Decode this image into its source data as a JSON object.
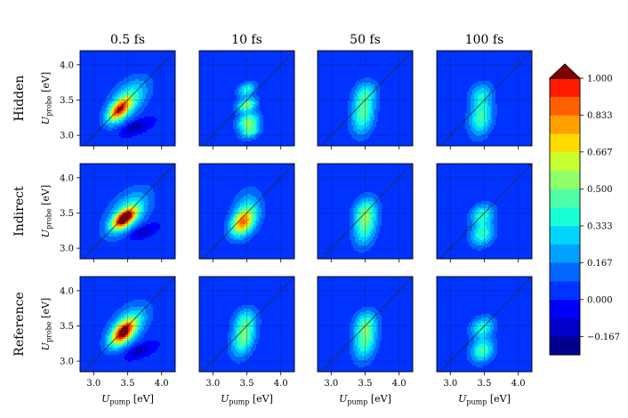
{
  "chart_data": {
    "type": "heatmap",
    "subtype": "filled-contour grid (2D spectra)",
    "column_titles": [
      "0.5 fs",
      "10 fs",
      "50 fs",
      "100 fs"
    ],
    "row_labels": [
      "Hidden",
      "Indirect",
      "Reference"
    ],
    "xlabel_main": "U",
    "xlabel_sub": "pump",
    "xlabel_unit": " [eV]",
    "ylabel_main": "U",
    "ylabel_sub": "probe",
    "ylabel_unit": " [eV]",
    "xlim": [
      2.8,
      4.2
    ],
    "ylim": [
      2.85,
      4.2
    ],
    "x_ticks": [
      3.0,
      3.5,
      4.0
    ],
    "x_tick_labels": [
      "3.0",
      "3.5",
      "4.0"
    ],
    "y_ticks": [
      3.0,
      3.5,
      4.0
    ],
    "y_tick_labels": [
      "3.0",
      "3.5",
      "4.0"
    ],
    "grid": true,
    "diagonal_line": true,
    "colorbar": {
      "levels": [
        -0.25,
        -0.167,
        -0.083,
        0.0,
        0.083,
        0.167,
        0.25,
        0.333,
        0.417,
        0.5,
        0.583,
        0.667,
        0.75,
        0.833,
        0.917,
        1.0
      ],
      "colors": [
        "#00008f",
        "#0000c8",
        "#0000ff",
        "#0033ff",
        "#0066ff",
        "#00a0ff",
        "#00d4ff",
        "#18ffd8",
        "#50ffa5",
        "#90ff6a",
        "#c8ff30",
        "#ffda00",
        "#ff9f00",
        "#ff6000",
        "#ff1a00",
        "#c00000"
      ],
      "extend_color": "#800000",
      "tick_values": [
        -0.167,
        0.0,
        0.167,
        0.333,
        0.5,
        0.667,
        0.833,
        1.0
      ],
      "tick_labels": [
        "−0.167",
        "0.000",
        "0.167",
        "0.333",
        "0.500",
        "0.667",
        "0.833",
        "1.000"
      ]
    },
    "panels": [
      [
        {
          "row": "Hidden",
          "col": "0.5 fs",
          "peaks": [
            [
              3.37,
              3.35,
              0.72,
              0.11,
              0.11,
              0.55
            ],
            [
              3.5,
              3.5,
              0.42,
              0.2,
              0.2,
              0.5
            ]
          ],
          "neg": [
            [
              3.62,
              3.12,
              -0.22,
              0.13,
              0.07,
              0.6
            ]
          ]
        },
        {
          "row": "Hidden",
          "col": "10 fs",
          "peaks": [
            [
              3.5,
              3.65,
              0.38,
              0.09,
              0.07,
              0.3
            ],
            [
              3.5,
              3.43,
              0.52,
              0.1,
              0.07,
              0.3
            ],
            [
              3.52,
              3.2,
              0.5,
              0.11,
              0.08,
              0.3
            ],
            [
              3.55,
              3.05,
              0.4,
              0.1,
              0.07,
              0.3
            ]
          ],
          "neg": []
        },
        {
          "row": "Hidden",
          "col": "50 fs",
          "peaks": [
            [
              3.47,
              3.3,
              0.44,
              0.12,
              0.2,
              0.2
            ],
            [
              3.5,
              3.6,
              0.26,
              0.12,
              0.12,
              0.2
            ]
          ],
          "neg": []
        },
        {
          "row": "Hidden",
          "col": "100 fs",
          "peaks": [
            [
              3.45,
              3.25,
              0.42,
              0.12,
              0.18,
              0.2
            ],
            [
              3.45,
              3.58,
              0.26,
              0.12,
              0.12,
              0.2
            ]
          ],
          "neg": []
        }
      ],
      [
        {
          "row": "Indirect",
          "col": "0.5 fs",
          "peaks": [
            [
              3.45,
              3.42,
              0.92,
              0.12,
              0.1,
              0.6
            ],
            [
              3.5,
              3.5,
              0.38,
              0.22,
              0.22,
              0.5
            ]
          ],
          "neg": [
            [
              3.7,
              3.23,
              -0.2,
              0.13,
              0.07,
              0.6
            ]
          ]
        },
        {
          "row": "Indirect",
          "col": "10 fs",
          "peaks": [
            [
              3.43,
              3.36,
              0.62,
              0.12,
              0.13,
              0.4
            ],
            [
              3.5,
              3.5,
              0.3,
              0.15,
              0.22,
              0.2
            ]
          ],
          "neg": []
        },
        {
          "row": "Indirect",
          "col": "50 fs",
          "peaks": [
            [
              3.5,
              3.32,
              0.43,
              0.12,
              0.2,
              0.2
            ],
            [
              3.5,
              3.55,
              0.26,
              0.12,
              0.13,
              0.2
            ]
          ],
          "neg": []
        },
        {
          "row": "Indirect",
          "col": "100 fs",
          "peaks": [
            [
              3.47,
              3.2,
              0.4,
              0.12,
              0.12,
              0.2
            ],
            [
              3.47,
              3.48,
              0.38,
              0.12,
              0.1,
              0.2
            ]
          ],
          "neg": []
        }
      ],
      [
        {
          "row": "Reference",
          "col": "0.5 fs",
          "peaks": [
            [
              3.43,
              3.4,
              0.8,
              0.12,
              0.12,
              0.55
            ],
            [
              3.5,
              3.5,
              0.4,
              0.2,
              0.2,
              0.5
            ]
          ],
          "neg": [
            [
              3.68,
              3.15,
              -0.2,
              0.13,
              0.07,
              0.6
            ]
          ]
        },
        {
          "row": "Reference",
          "col": "10 fs",
          "peaks": [
            [
              3.45,
              3.33,
              0.48,
              0.12,
              0.18,
              0.3
            ],
            [
              3.47,
              3.6,
              0.24,
              0.12,
              0.12,
              0.2
            ]
          ],
          "neg": []
        },
        {
          "row": "Reference",
          "col": "50 fs",
          "peaks": [
            [
              3.5,
              3.3,
              0.45,
              0.12,
              0.2,
              0.2
            ],
            [
              3.5,
              3.55,
              0.25,
              0.12,
              0.12,
              0.2
            ]
          ],
          "neg": []
        },
        {
          "row": "Reference",
          "col": "100 fs",
          "peaks": [
            [
              3.47,
              3.15,
              0.43,
              0.12,
              0.12,
              0.2
            ],
            [
              3.47,
              3.48,
              0.38,
              0.12,
              0.1,
              0.2
            ]
          ],
          "neg": []
        }
      ]
    ]
  }
}
